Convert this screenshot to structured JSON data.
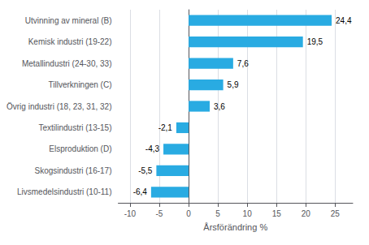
{
  "chart_data": {
    "type": "bar",
    "orientation": "horizontal",
    "categories": [
      "Livsmedelsindustri (10-11)",
      "Skogsindustri (16-17)",
      "Elsproduktion (D)",
      "Textilindustri (13-15)",
      "Övrig industri (18, 23, 31, 32)",
      "Tillverkningen (C)",
      "Metallindustri (24-30, 33)",
      "Kemisk industri (19-22)",
      "Utvinning av mineral (B)"
    ],
    "values": [
      -6.4,
      -5.5,
      -4.3,
      -2.1,
      3.6,
      5.9,
      7.6,
      19.5,
      24.4
    ],
    "value_labels": [
      "-6,4",
      "-5,5",
      "-4,3",
      "-2,1",
      "3,6",
      "5,9",
      "7,6",
      "19,5",
      "24,4"
    ],
    "data_labels": true,
    "color": "#29abe2",
    "xlabel": "Årsförändring %",
    "xlim": [
      -12,
      28
    ],
    "xticks": [
      -10,
      -5,
      0,
      5,
      10,
      15,
      20,
      25
    ],
    "grid": true
  }
}
